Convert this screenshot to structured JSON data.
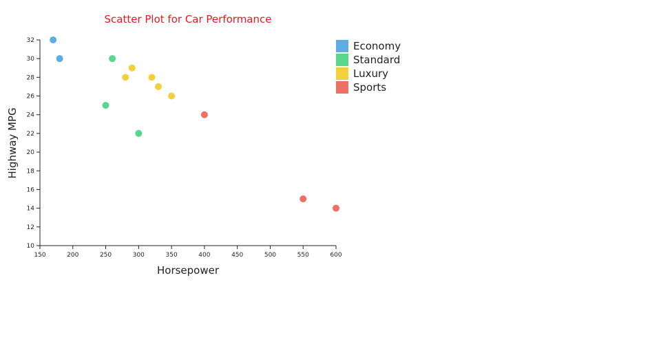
{
  "chart_data": {
    "type": "scatter",
    "title": "Scatter Plot for Car Performance",
    "title_color": "#e8191e",
    "xlabel": "Horsepower",
    "ylabel": "Highway MPG",
    "xlim": [
      150,
      600
    ],
    "ylim": [
      10,
      32
    ],
    "x_ticks": [
      150,
      200,
      250,
      300,
      350,
      400,
      450,
      500,
      550,
      600
    ],
    "y_ticks": [
      10,
      12,
      14,
      16,
      18,
      20,
      22,
      24,
      26,
      28,
      30,
      32
    ],
    "grid": false,
    "legend_position": "top-right",
    "series": [
      {
        "name": "Economy",
        "color": "#5dade2",
        "points": [
          {
            "x": 170,
            "y": 32
          },
          {
            "x": 180,
            "y": 30
          }
        ]
      },
      {
        "name": "Standard",
        "color": "#58d68d",
        "points": [
          {
            "x": 260,
            "y": 30
          },
          {
            "x": 250,
            "y": 25
          },
          {
            "x": 300,
            "y": 22
          }
        ]
      },
      {
        "name": "Luxury",
        "color": "#f4d03f",
        "points": [
          {
            "x": 290,
            "y": 29
          },
          {
            "x": 280,
            "y": 28
          },
          {
            "x": 320,
            "y": 28
          },
          {
            "x": 330,
            "y": 27
          },
          {
            "x": 350,
            "y": 26
          }
        ]
      },
      {
        "name": "Sports",
        "color": "#ec7063",
        "points": [
          {
            "x": 400,
            "y": 24
          },
          {
            "x": 550,
            "y": 15
          },
          {
            "x": 600,
            "y": 14
          }
        ]
      }
    ]
  }
}
